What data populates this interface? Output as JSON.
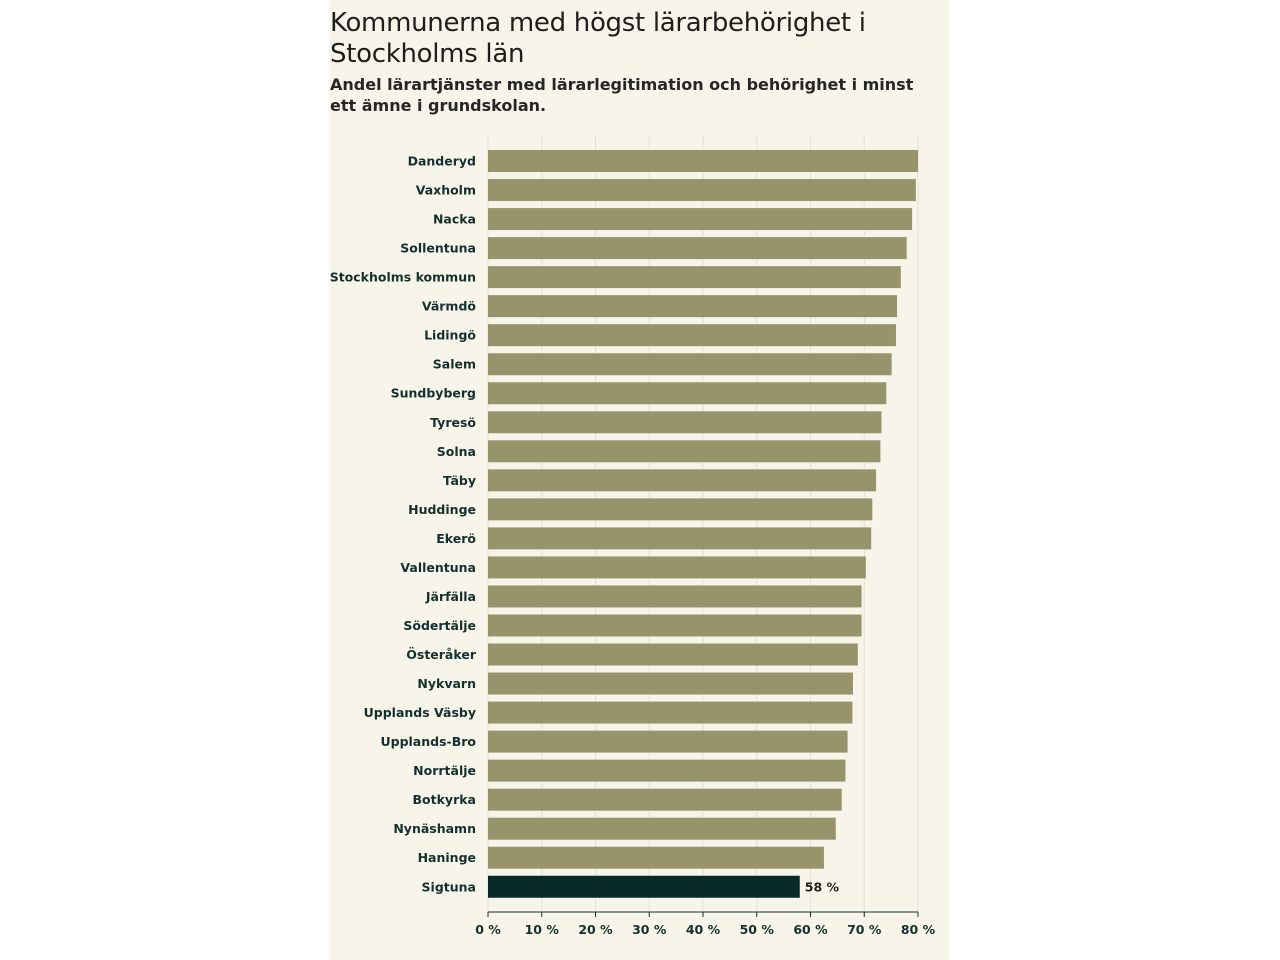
{
  "chart_data": {
    "type": "bar",
    "orientation": "horizontal",
    "title": "Kommunerna med högst lärarbehörighet i Stockholms län",
    "subtitle": "Andel lärartjänster med lärarlegitimation och behörighet i minst ett ämne i grundskolan.",
    "categories": [
      "Danderyd",
      "Vaxholm",
      "Nacka",
      "Sollentuna",
      "Stockholms kommun",
      "Värmdö",
      "Lidingö",
      "Salem",
      "Sundbyberg",
      "Tyresö",
      "Solna",
      "Täby",
      "Huddinge",
      "Ekerö",
      "Vallentuna",
      "Järfälla",
      "Södertälje",
      "Österåker",
      "Nykvarn",
      "Upplands Väsby",
      "Upplands-Bro",
      "Norrtälje",
      "Botkyrka",
      "Nynäshamn",
      "Haninge",
      "Sigtuna"
    ],
    "values": [
      80,
      79.6,
      78.9,
      77.9,
      76.8,
      76.1,
      75.9,
      75.1,
      74.1,
      73.2,
      73.0,
      72.2,
      71.5,
      71.3,
      70.3,
      69.5,
      69.5,
      68.8,
      67.9,
      67.8,
      66.9,
      66.5,
      65.8,
      64.7,
      62.5,
      58
    ],
    "highlight": {
      "category": "Sigtuna",
      "label": "58 %"
    },
    "xlim": [
      0,
      80
    ],
    "xticks": [
      "0 %",
      "10 %",
      "20 %",
      "30 %",
      "40 %",
      "50 %",
      "60 %",
      "70 %",
      "80 %"
    ],
    "xlabel": "",
    "ylabel": "",
    "grid": true,
    "colors": {
      "bar": "#97946c",
      "highlight": "#072a28",
      "grid": "#e3e1d3",
      "axis": "#14302e"
    }
  }
}
